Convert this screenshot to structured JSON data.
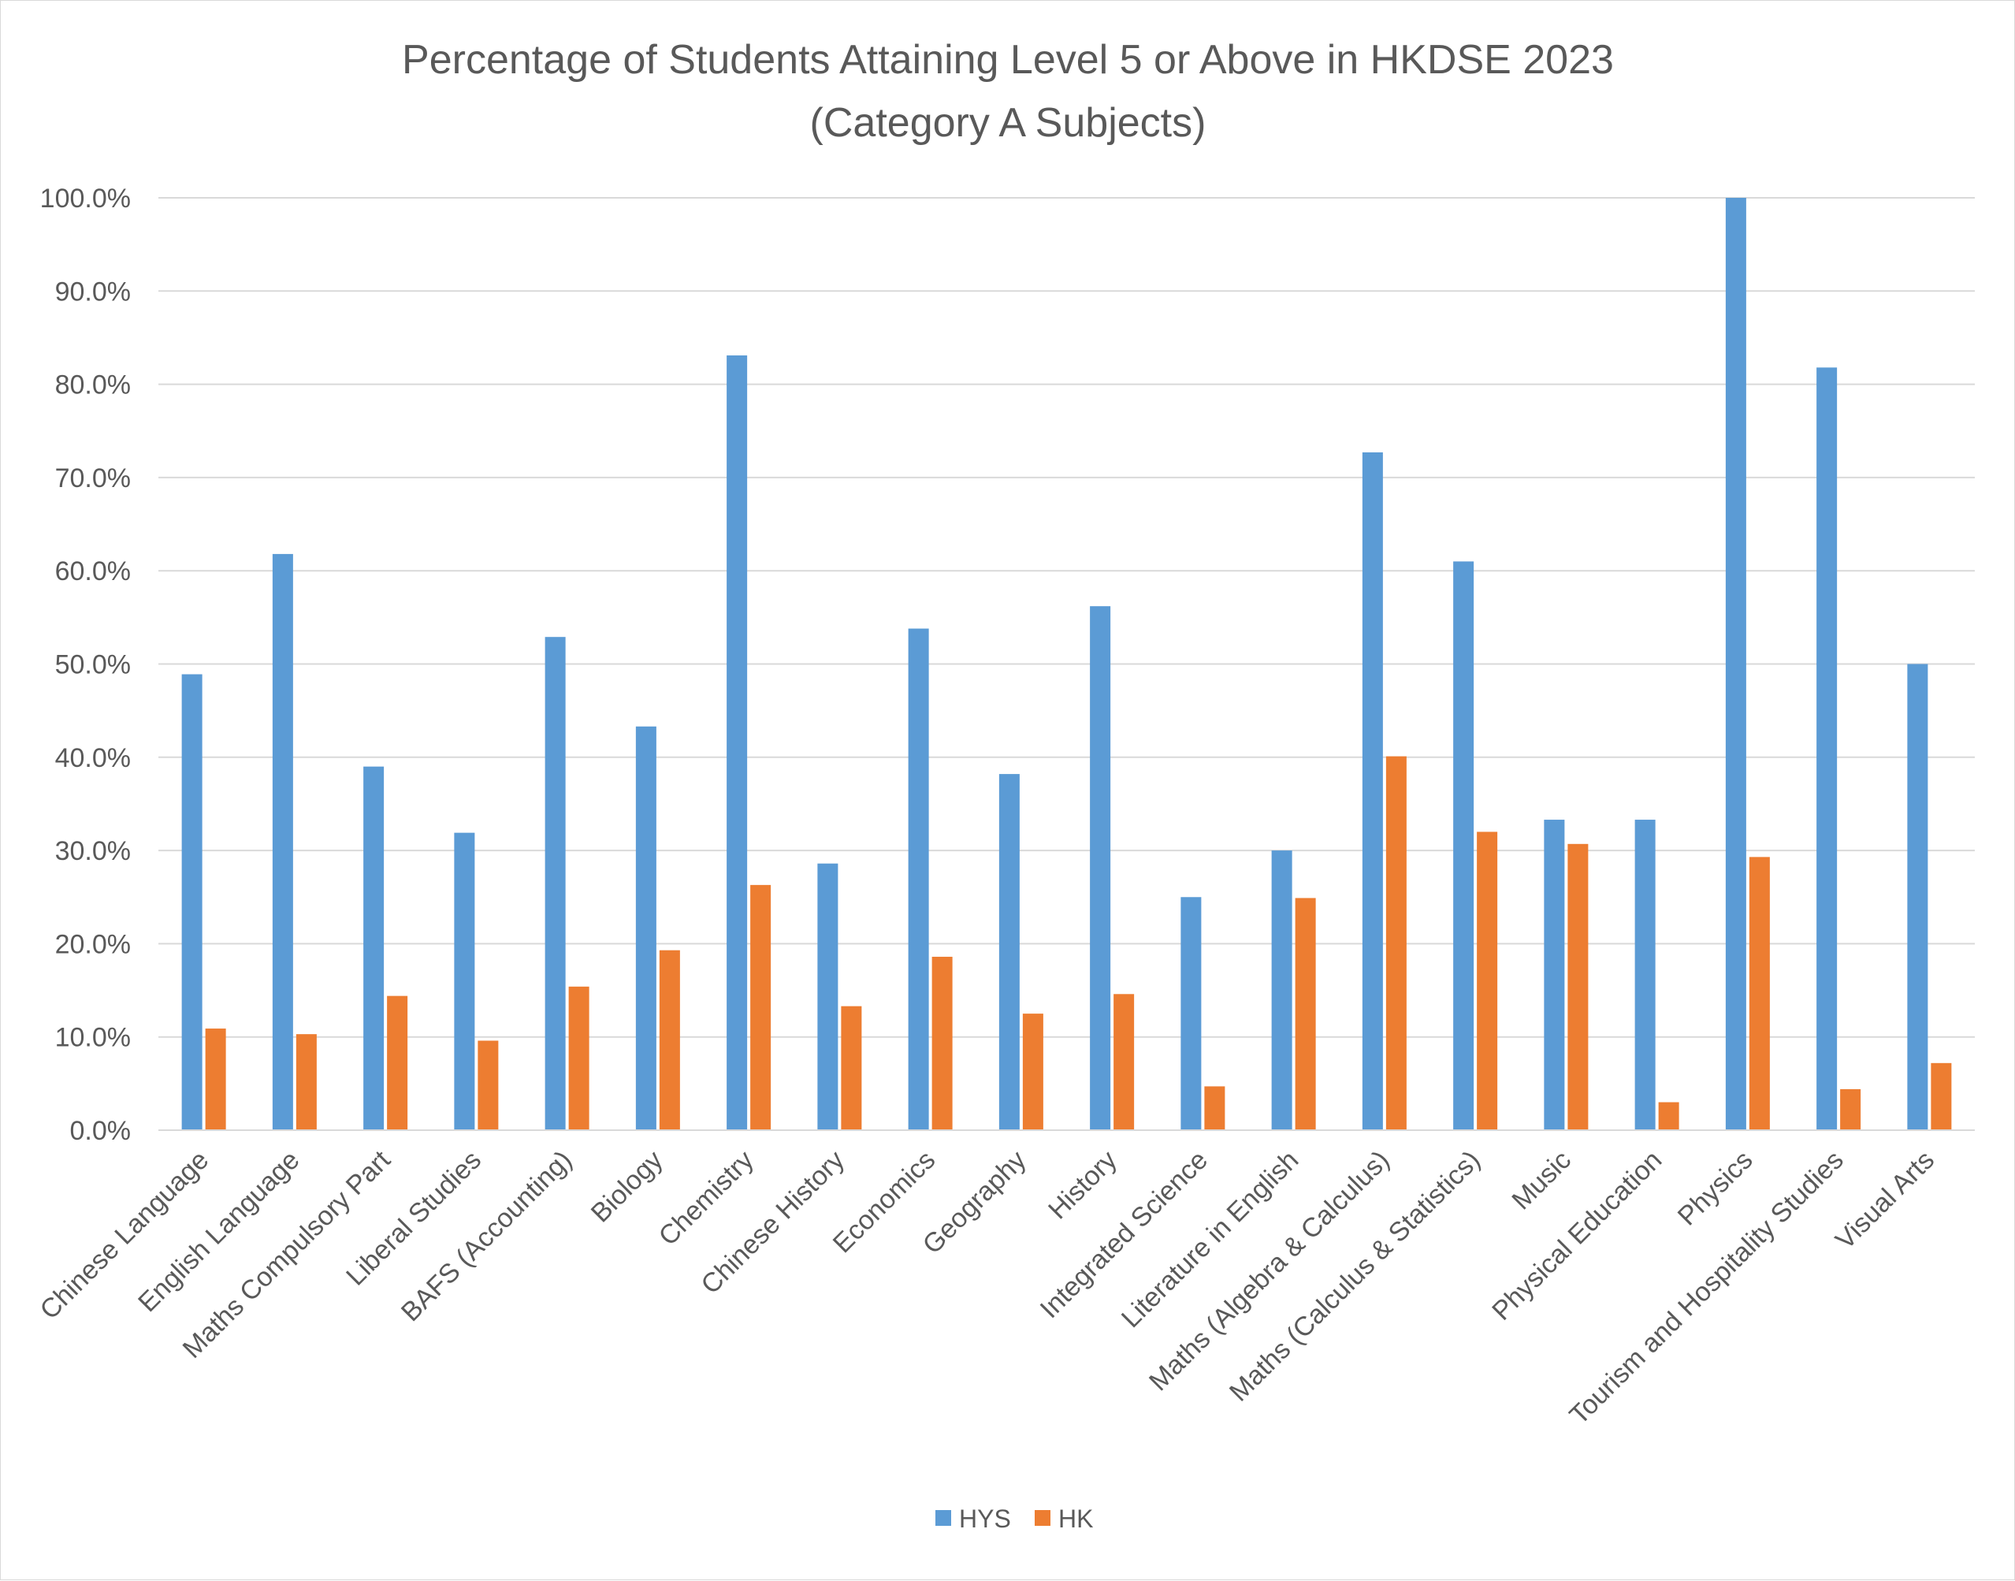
{
  "chart_data": {
    "type": "bar",
    "title": [
      "Percentage of Students Attaining Level 5 or Above in HKDSE 2023",
      "(Category A Subjects)"
    ],
    "categories": [
      "Chinese Language",
      "English Language",
      "Maths Compulsory Part",
      "Liberal Studies",
      "BAFS (Accounting)",
      "Biology",
      "Chemistry",
      "Chinese History",
      "Economics",
      "Geography",
      "History",
      "Integrated Science",
      "Literature in English",
      "Maths (Algebra & Calculus)",
      "Maths (Calculus & Statistics)",
      "Music",
      "Physical Education",
      "Physics",
      "Tourism and Hospitality Studies",
      "Visual Arts"
    ],
    "series": [
      {
        "name": "HYS",
        "color": "#5b9bd5",
        "values": [
          48.9,
          61.8,
          39.0,
          31.9,
          52.9,
          43.3,
          83.1,
          28.6,
          53.8,
          38.2,
          56.2,
          25.0,
          30.0,
          72.7,
          61.0,
          33.3,
          33.3,
          100.0,
          81.8,
          50.0
        ]
      },
      {
        "name": "HK",
        "color": "#ed7d31",
        "values": [
          10.9,
          10.3,
          14.4,
          9.6,
          15.4,
          19.3,
          26.3,
          13.3,
          18.6,
          12.5,
          14.6,
          4.7,
          24.9,
          40.1,
          32.0,
          30.7,
          3.0,
          29.3,
          4.4,
          7.2
        ]
      }
    ],
    "ylim": [
      0,
      100
    ],
    "yticks": [
      "0.0%",
      "10.0%",
      "20.0%",
      "30.0%",
      "40.0%",
      "50.0%",
      "60.0%",
      "70.0%",
      "80.0%",
      "90.0%",
      "100.0%"
    ],
    "grid": true,
    "legend_position": "bottom",
    "gridline_color": "#d9d9d9"
  }
}
